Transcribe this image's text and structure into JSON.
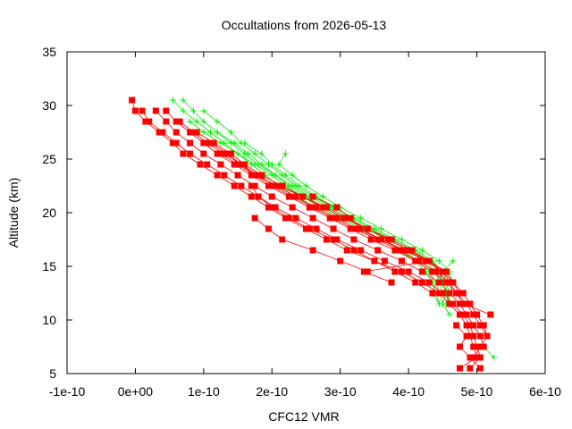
{
  "chart_data": {
    "type": "scatter",
    "title": "Occultations from 2026-05-13",
    "xlabel": "CFC12 VMR",
    "ylabel": "Altitude (km)",
    "xlim": [
      -1e-10,
      6e-10
    ],
    "ylim": [
      5,
      35
    ],
    "x_ticks": [
      -1e-10,
      0,
      1e-10,
      2e-10,
      3e-10,
      4e-10,
      5e-10,
      6e-10
    ],
    "x_tick_labels": [
      "-1e-10",
      "0e+00",
      "1e-10",
      "2e-10",
      "3e-10",
      "4e-10",
      "5e-10",
      "6e-10"
    ],
    "y_ticks": [
      5,
      10,
      15,
      20,
      25,
      30,
      35
    ],
    "y_tick_labels": [
      "5",
      "10",
      "15",
      "20",
      "25",
      "30",
      "35"
    ],
    "grid": false,
    "legend": "none",
    "series": [
      {
        "marker": "plus",
        "color": "#00ee00",
        "profiles": [
          {
            "altitude": [
              30.5,
              29.5,
              28.5,
              27.5,
              26.5,
              25.5,
              24.5,
              23.5,
              22.5,
              21.5,
              20.5,
              19.5,
              18.5,
              17.5,
              16.5,
              15.5,
              14.5,
              13.5,
              12.5,
              11.5
            ],
            "vmr": [
              7e-11,
              8.5e-11,
              1e-10,
              1.2e-10,
              1.4e-10,
              1.6e-10,
              1.8e-10,
              2.05e-10,
              2.3e-10,
              2.55e-10,
              2.85e-10,
              3.15e-10,
              3.45e-10,
              3.75e-10,
              4.05e-10,
              4.3e-10,
              4.45e-10,
              4.55e-10,
              4.6e-10,
              4.6e-10
            ]
          },
          {
            "altitude": [
              30.5,
              29.5,
              28.5,
              27.5,
              26.5,
              25.5,
              24.5,
              23.5,
              22.5,
              21.5,
              20.5,
              19.5,
              18.5,
              17.5,
              16.5,
              15.5,
              14.5,
              13.5,
              12.5,
              11.5
            ],
            "vmr": [
              5.5e-11,
              7e-11,
              9e-11,
              1.1e-10,
              1.3e-10,
              1.5e-10,
              1.75e-10,
              2e-10,
              2.2e-10,
              2.45e-10,
              2.7e-10,
              3e-10,
              3.3e-10,
              3.6e-10,
              3.9e-10,
              4.15e-10,
              4.3e-10,
              4.4e-10,
              4.45e-10,
              4.5e-10
            ]
          },
          {
            "altitude": [
              29.5,
              28.5,
              27.5,
              26.5,
              25.5,
              24.5,
              23.5,
              22.5,
              21.5,
              20.5,
              19.5,
              18.5,
              17.5,
              16.5,
              15.5,
              14.5,
              13.5,
              12.5,
              11.5,
              10.5
            ],
            "vmr": [
              1e-10,
              1.2e-10,
              1.4e-10,
              1.55e-10,
              1.75e-10,
              1.95e-10,
              2.15e-10,
              2.35e-10,
              2.6e-10,
              2.9e-10,
              3.2e-10,
              3.5e-10,
              3.8e-10,
              4.1e-10,
              4.35e-10,
              4.5e-10,
              4.55e-10,
              4.55e-10,
              4.5e-10,
              4.6e-10
            ]
          },
          {
            "altitude": [
              28.5,
              27.5,
              26.5,
              25.5,
              24.5,
              23.5,
              22.5,
              21.5,
              20.5,
              19.5,
              18.5,
              17.5,
              16.5,
              15.5,
              14.5,
              13.5,
              12.5,
              11.5
            ],
            "vmr": [
              8e-11,
              1e-10,
              1.25e-10,
              1.5e-10,
              1.7e-10,
              1.9e-10,
              2.1e-10,
              2.35e-10,
              2.6e-10,
              2.9e-10,
              3.2e-10,
              3.55e-10,
              3.85e-10,
              4.1e-10,
              4.25e-10,
              4.35e-10,
              4.4e-10,
              4.45e-10
            ]
          },
          {
            "altitude": [
              27.5,
              26.5,
              25.5,
              24.5,
              23.5,
              22.5,
              21.5,
              20.5,
              19.5,
              18.5,
              17.5,
              16.5,
              15.5,
              14.5,
              13.5,
              12.5
            ],
            "vmr": [
              1.2e-10,
              1.45e-10,
              1.65e-10,
              1.85e-10,
              2.05e-10,
              2.25e-10,
              2.5e-10,
              2.75e-10,
              3.05e-10,
              3.35e-10,
              3.7e-10,
              4e-10,
              4.25e-10,
              4.4e-10,
              4.45e-10,
              4.5e-10
            ]
          },
          {
            "altitude": [
              26.5,
              25.5,
              24.5,
              23.5,
              22.5,
              21.5,
              20.5,
              19.5,
              18.5,
              17.5,
              16.5,
              15.5,
              14.5,
              13.5,
              12.5,
              11.5
            ],
            "vmr": [
              1.6e-10,
              1.85e-10,
              2e-10,
              2.2e-10,
              2.4e-10,
              2.65e-10,
              2.9e-10,
              3.2e-10,
              3.5e-10,
              3.8e-10,
              4.1e-10,
              4.35e-10,
              4.45e-10,
              4.5e-10,
              4.55e-10,
              4.6e-10
            ]
          },
          {
            "altitude": [
              25.5,
              24.5,
              23.5,
              22.5,
              21.5,
              20.5,
              19.5,
              18.5,
              17.5,
              16.5,
              15.5,
              14.5,
              13.5,
              12.5,
              11.5
            ],
            "vmr": [
              2.2e-10,
              2.1e-10,
              2.3e-10,
              2.5e-10,
              2.75e-10,
              3e-10,
              3.3e-10,
              3.6e-10,
              3.9e-10,
              4.2e-10,
              4.45e-10,
              4.6e-10,
              4.65e-10,
              4.6e-10,
              4.55e-10
            ]
          },
          {
            "altitude": [
              15.5,
              14.5,
              13.5,
              12.5,
              11.5
            ],
            "vmr": [
              4.65e-10,
              4.5e-10,
              4.4e-10,
              4.35e-10,
              4.45e-10
            ]
          },
          {
            "altitude": [
              7.5,
              6.5
            ],
            "vmr": [
              5.1e-10,
              5.25e-10
            ]
          }
        ]
      },
      {
        "marker": "square",
        "color": "#ff0000",
        "profiles": [
          {
            "altitude": [
              30.5,
              29.5,
              28.5,
              27.5,
              26.5,
              25.5,
              24.5,
              23.5,
              22.5,
              21.5,
              20.5,
              19.5,
              18.5,
              17.5,
              16.5,
              15.5,
              14.5,
              13.5,
              12.5,
              11.5,
              10.5,
              9.5,
              8.5,
              7.5,
              6.5,
              5.5
            ],
            "vmr": [
              -5e-12,
              0.0,
              1.5e-11,
              3.5e-11,
              5.5e-11,
              7e-11,
              9.5e-11,
              1.2e-10,
              1.45e-10,
              1.7e-10,
              1.95e-10,
              2.2e-10,
              2.5e-10,
              2.8e-10,
              3.1e-10,
              3.5e-10,
              3.9e-10,
              4.2e-10,
              4.45e-10,
              4.6e-10,
              4.75e-10,
              4.85e-10,
              4.9e-10,
              4.95e-10,
              5e-10,
              4.75e-10
            ]
          },
          {
            "altitude": [
              29.5,
              28.5,
              27.5,
              26.5,
              25.5,
              24.5,
              23.5,
              22.5,
              21.5,
              20.5,
              19.5,
              18.5,
              17.5,
              16.5,
              15.5,
              14.5,
              13.5,
              12.5,
              11.5,
              10.5,
              9.5,
              8.5,
              7.5,
              6.5,
              5.5
            ],
            "vmr": [
              1e-11,
              2e-11,
              4e-11,
              6e-11,
              8e-11,
              1.05e-10,
              1.3e-10,
              1.55e-10,
              1.8e-10,
              2.05e-10,
              2.35e-10,
              2.65e-10,
              2.95e-10,
              3.3e-10,
              3.65e-10,
              4e-10,
              4.3e-10,
              4.5e-10,
              4.65e-10,
              4.8e-10,
              4.9e-10,
              4.95e-10,
              5e-10,
              5.05e-10,
              4.9e-10
            ]
          },
          {
            "altitude": [
              29.5,
              28.5,
              27.5,
              26.5,
              25.5,
              24.5,
              23.5,
              22.5,
              21.5,
              20.5,
              19.5,
              18.5,
              17.5,
              16.5,
              15.5,
              14.5,
              13.5,
              12.5,
              11.5,
              10.5,
              9.5,
              8.5,
              7.5
            ],
            "vmr": [
              3e-11,
              4.5e-11,
              6e-11,
              8e-11,
              1e-10,
              1.25e-10,
              1.5e-10,
              1.75e-10,
              2e-10,
              2.3e-10,
              2.6e-10,
              2.9e-10,
              3.2e-10,
              3.55e-10,
              3.9e-10,
              4.2e-10,
              4.45e-10,
              4.6e-10,
              4.75e-10,
              4.85e-10,
              4.95e-10,
              5.05e-10,
              5.1e-10
            ]
          },
          {
            "altitude": [
              29.5,
              28.5,
              27.5,
              26.5,
              25.5,
              24.5,
              23.5,
              22.5,
              21.5,
              20.5,
              19.5,
              18.5,
              17.5,
              16.5,
              15.5,
              14.5,
              13.5,
              12.5,
              11.5,
              10.5,
              9.5,
              8.5
            ],
            "vmr": [
              4.5e-11,
              6e-11,
              8e-11,
              1e-10,
              1.2e-10,
              1.45e-10,
              1.7e-10,
              1.95e-10,
              2.25e-10,
              2.55e-10,
              2.85e-10,
              3.15e-10,
              3.45e-10,
              3.8e-10,
              4.1e-10,
              4.35e-10,
              4.55e-10,
              4.7e-10,
              4.85e-10,
              4.95e-10,
              5.05e-10,
              5.15e-10
            ]
          },
          {
            "altitude": [
              28.5,
              27.5,
              26.5,
              25.5,
              24.5,
              23.5,
              22.5,
              21.5,
              20.5,
              19.5,
              18.5,
              17.5,
              16.5,
              15.5,
              14.5,
              13.5,
              12.5,
              11.5,
              10.5,
              9.5,
              8.5,
              7.5,
              6.5
            ],
            "vmr": [
              6.5e-11,
              8.5e-11,
              1.05e-10,
              1.3e-10,
              1.55e-10,
              1.8e-10,
              2.05e-10,
              2.35e-10,
              2.65e-10,
              2.95e-10,
              3.25e-10,
              3.6e-10,
              3.95e-10,
              4.25e-10,
              4.5e-10,
              4.65e-10,
              4.8e-10,
              4.9e-10,
              5e-10,
              5.1e-10,
              5.15e-10,
              5.05e-10,
              4.95e-10
            ]
          },
          {
            "altitude": [
              27.5,
              26.5,
              25.5,
              24.5,
              23.5,
              22.5,
              21.5,
              20.5,
              19.5,
              18.5,
              17.5,
              16.5,
              15.5,
              14.5,
              13.5,
              12.5,
              11.5,
              10.5
            ],
            "vmr": [
              9e-11,
              1.15e-10,
              1.4e-10,
              1.6e-10,
              1.85e-10,
              2.15e-10,
              2.45e-10,
              2.75e-10,
              3.05e-10,
              3.4e-10,
              3.75e-10,
              4.05e-10,
              4.3e-10,
              4.5e-10,
              4.6e-10,
              4.7e-10,
              4.8e-10,
              5.2e-10
            ]
          },
          {
            "altitude": [
              26.5,
              25.5,
              24.5,
              23.5,
              22.5,
              21.5,
              20.5,
              19.5,
              18.5,
              17.5,
              16.5,
              15.5,
              14.5,
              13.5
            ],
            "vmr": [
              1.1e-10,
              1.35e-10,
              1.55e-10,
              1.75e-10,
              2e-10,
              2.3e-10,
              2.6e-10,
              2.9e-10,
              3.2e-10,
              3.55e-10,
              3.85e-10,
              4.15e-10,
              4.4e-10,
              4.6e-10
            ]
          },
          {
            "altitude": [
              25.5,
              24.5,
              23.5,
              22.5,
              21.5,
              20.5,
              19.5,
              18.5,
              17.5,
              16.5,
              15.5,
              14.5,
              13.5,
              12.5
            ],
            "vmr": [
              1.25e-10,
              1.5e-10,
              1.75e-10,
              2.1e-10,
              2.45e-10,
              2.8e-10,
              3.1e-10,
              3.4e-10,
              3.7e-10,
              4e-10,
              4.3e-10,
              4.55e-10,
              4.65e-10,
              4.75e-10
            ]
          },
          {
            "altitude": [
              22.5,
              21.5,
              20.5,
              19.5,
              18.5,
              17.5,
              16.5,
              15.5,
              14.5,
              13.5,
              12.5
            ],
            "vmr": [
              1.7e-10,
              1.8e-10,
              2e-10,
              2.25e-10,
              2.55e-10,
              2.9e-10,
              3.2e-10,
              3.5e-10,
              3.8e-10,
              4.1e-10,
              4.35e-10
            ]
          },
          {
            "altitude": [
              21.5,
              20.5,
              19.5,
              18.5,
              17.5,
              16.5,
              15.5,
              14.5,
              13.5
            ],
            "vmr": [
              2.6e-10,
              2.95e-10,
              3.15e-10,
              3.3e-10,
              3.6e-10,
              3.9e-10,
              4.3e-10,
              3.35e-10,
              3.75e-10
            ]
          },
          {
            "altitude": [
              19.5,
              18.5,
              17.5,
              16.5,
              15.5,
              14.5
            ],
            "vmr": [
              1.75e-10,
              1.95e-10,
              2.15e-10,
              2.6e-10,
              3e-10,
              3.4e-10
            ]
          },
          {
            "altitude": [
              9.5,
              8.5,
              7.5,
              6.5,
              5.5
            ],
            "vmr": [
              4.7e-10,
              4.85e-10,
              4.75e-10,
              4.9e-10,
              5.05e-10
            ]
          }
        ]
      }
    ]
  }
}
